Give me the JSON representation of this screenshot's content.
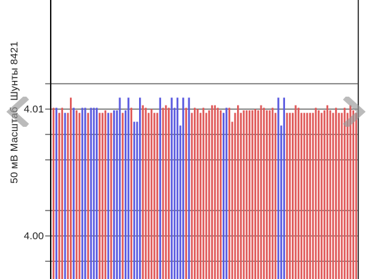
{
  "chart_data": {
    "type": "bar",
    "ylabel_parts": [
      "50 мВ Масштаб",
      "Шунты 8421"
    ],
    "ylim": [
      3.9966,
      4.0186
    ],
    "yticks": [
      4.0,
      4.01
    ],
    "ytick_labels": [
      "4.00",
      "4.01"
    ],
    "gridlines": [
      3.998,
      4.0,
      4.002,
      4.006,
      4.008,
      4.01,
      4.012
    ],
    "grid": true,
    "series": [
      {
        "color": "#e05a5a",
        "role": "low"
      },
      {
        "color": "#5a5ae0",
        "role": "high"
      }
    ],
    "values": [
      4.0101,
      4.0101,
      4.0097,
      4.0101,
      4.0097,
      4.0097,
      4.0109,
      4.0101,
      4.0099,
      4.0097,
      4.0101,
      4.0101,
      4.0097,
      4.0101,
      4.0101,
      4.0101,
      4.0097,
      4.0097,
      4.0099,
      4.0097,
      4.0097,
      4.0099,
      4.0099,
      4.0109,
      4.0097,
      4.0099,
      4.0109,
      4.0101,
      4.009,
      4.009,
      4.0109,
      4.0103,
      4.0101,
      4.0097,
      4.01,
      4.0097,
      4.0097,
      4.0109,
      4.0101,
      4.0103,
      4.0101,
      4.0109,
      4.0101,
      4.0109,
      4.0087,
      4.0109,
      4.0101,
      4.0109,
      4.0097,
      4.0101,
      4.01,
      4.0097,
      4.0101,
      4.0097,
      4.0099,
      4.0103,
      4.0103,
      4.0101,
      4.0099,
      4.0097,
      4.0101,
      4.0101,
      4.009,
      4.0097,
      4.0103,
      4.0097,
      4.0099,
      4.0099,
      4.0099,
      4.0099,
      4.01,
      4.0099,
      4.0103,
      4.0101,
      4.0099,
      4.0099,
      4.0101,
      4.0097,
      4.0109,
      4.0087,
      4.0109,
      4.0097,
      4.0097,
      4.0097,
      4.0103,
      4.0101,
      4.0097,
      4.0097,
      4.0097,
      4.0097,
      4.0097,
      4.0101,
      4.0099,
      4.0097,
      4.0099,
      4.0103,
      4.0099,
      4.0097,
      4.0101,
      4.0097,
      4.0097,
      4.0101,
      4.0097,
      4.0103,
      4.0099,
      4.0097
    ],
    "colors": [
      "r",
      "b",
      "r",
      "r",
      "b",
      "r",
      "r",
      "b",
      "r",
      "r",
      "b",
      "b",
      "r",
      "b",
      "b",
      "b",
      "r",
      "r",
      "r",
      "b",
      "r",
      "b",
      "b",
      "b",
      "r",
      "b",
      "b",
      "r",
      "b",
      "b",
      "b",
      "r",
      "r",
      "r",
      "r",
      "r",
      "r",
      "b",
      "r",
      "r",
      "r",
      "b",
      "b",
      "b",
      "b",
      "b",
      "r",
      "b",
      "r",
      "r",
      "r",
      "r",
      "r",
      "r",
      "r",
      "r",
      "r",
      "r",
      "r",
      "b",
      "b",
      "r",
      "r",
      "r",
      "r",
      "r",
      "r",
      "r",
      "r",
      "r",
      "r",
      "r",
      "r",
      "r",
      "r",
      "r",
      "r",
      "r",
      "b",
      "b",
      "b",
      "r",
      "r",
      "r",
      "r",
      "r",
      "r",
      "r",
      "r",
      "r",
      "r",
      "r",
      "r",
      "r",
      "r",
      "r",
      "r",
      "r",
      "r",
      "r",
      "r",
      "r",
      "r",
      "r",
      "r",
      "r"
    ]
  },
  "nav": {
    "prev_icon": "chevron-left-icon",
    "next_icon": "chevron-right-icon"
  }
}
